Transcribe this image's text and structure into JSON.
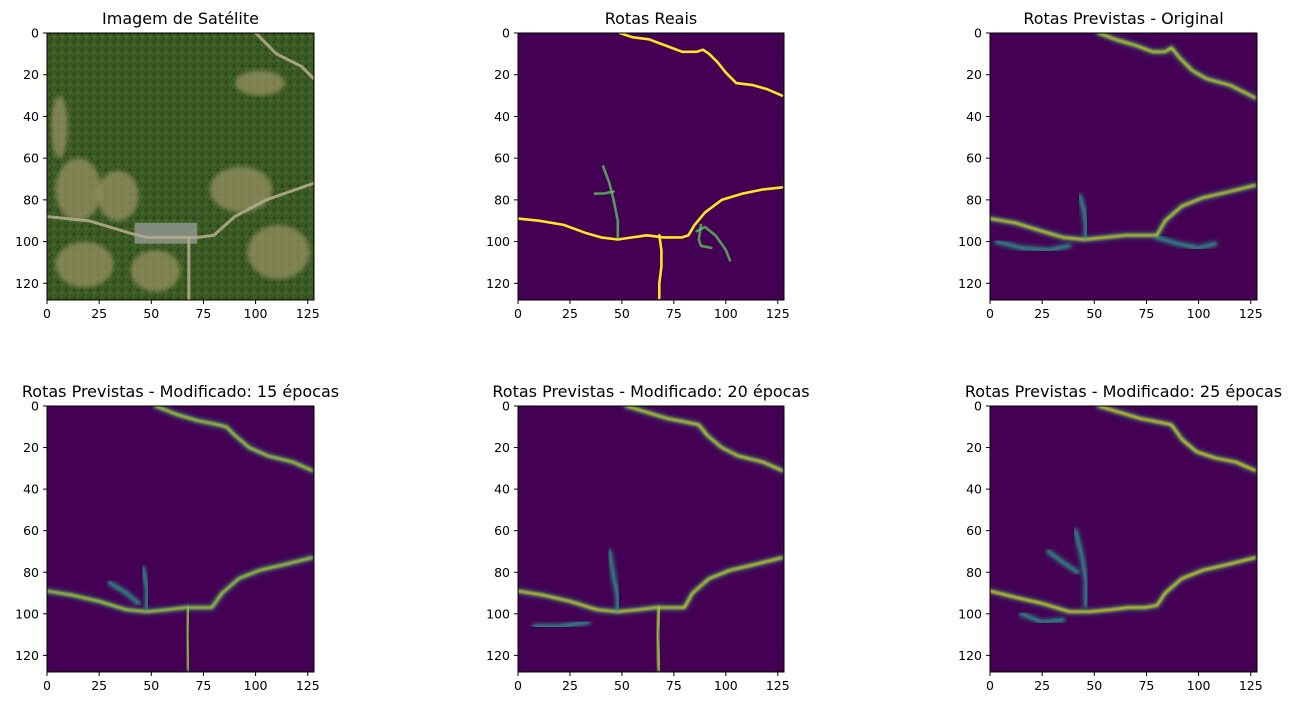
{
  "figure": {
    "description_hidden": false
  },
  "chart_data": [
    {
      "type": "image",
      "id": "satellite",
      "title": "Imagem de Satélite",
      "xlim": [
        0,
        128
      ],
      "ylim": [
        128,
        0
      ],
      "xticks": [
        0,
        25,
        50,
        75,
        100,
        125
      ],
      "yticks": [
        0,
        20,
        40,
        60,
        80,
        100,
        120
      ],
      "colors": {
        "forest": "#3b5a24",
        "forest_dark": "#2c4619",
        "soil": "#a59a6c",
        "road": "#b3aa8c",
        "urban": "#8f9690"
      },
      "roads": [
        [
          [
            0,
            88
          ],
          [
            20,
            90
          ],
          [
            40,
            96
          ],
          [
            48,
            98
          ],
          [
            60,
            98
          ],
          [
            72,
            98
          ],
          [
            80,
            97
          ],
          [
            90,
            88
          ],
          [
            105,
            80
          ],
          [
            128,
            72
          ]
        ],
        [
          [
            100,
            0
          ],
          [
            110,
            10
          ],
          [
            122,
            16
          ],
          [
            128,
            22
          ]
        ],
        [
          [
            68,
            98
          ],
          [
            68,
            128
          ]
        ]
      ]
    },
    {
      "type": "heatmap",
      "id": "real",
      "title": "Rotas Reais",
      "xlim": [
        0,
        128
      ],
      "ylim": [
        128,
        0
      ],
      "xticks": [
        0,
        25,
        50,
        75,
        100,
        125
      ],
      "yticks": [
        0,
        20,
        40,
        60,
        80,
        100,
        120
      ],
      "colormap": "viridis",
      "background": "#440154",
      "line_color": "#fde725",
      "secondary_color": "#5ec962",
      "lines": [
        [
          [
            49,
            0
          ],
          [
            55,
            2
          ],
          [
            63,
            3
          ],
          [
            71,
            6
          ],
          [
            79,
            9
          ],
          [
            86,
            9
          ],
          [
            89,
            8
          ],
          [
            92,
            10
          ],
          [
            96,
            14
          ],
          [
            100,
            19
          ],
          [
            105,
            24
          ],
          [
            113,
            25
          ],
          [
            120,
            27
          ],
          [
            127,
            30
          ]
        ],
        [
          [
            0,
            89
          ],
          [
            10,
            90
          ],
          [
            22,
            92
          ],
          [
            33,
            96
          ],
          [
            40,
            98
          ],
          [
            48,
            99
          ],
          [
            55,
            98
          ],
          [
            62,
            97
          ],
          [
            70,
            98
          ],
          [
            79,
            98
          ],
          [
            82,
            97
          ],
          [
            85,
            92
          ],
          [
            90,
            86
          ],
          [
            98,
            80
          ],
          [
            108,
            77
          ],
          [
            118,
            75
          ],
          [
            127,
            74
          ]
        ],
        [
          [
            68,
            97
          ],
          [
            69,
            104
          ],
          [
            69,
            112
          ],
          [
            68,
            120
          ],
          [
            68,
            127
          ]
        ],
        [
          [
            41,
            64
          ],
          [
            44,
            72
          ],
          [
            46,
            80
          ],
          [
            48,
            90
          ],
          [
            48,
            98
          ]
        ],
        [
          [
            37,
            77
          ],
          [
            41,
            77
          ],
          [
            46,
            76
          ]
        ],
        [
          [
            86,
            95
          ],
          [
            90,
            93
          ],
          [
            95,
            97
          ],
          [
            100,
            104
          ],
          [
            102,
            109
          ]
        ],
        [
          [
            88,
            92
          ],
          [
            87,
            99
          ],
          [
            88,
            102
          ],
          [
            93,
            103
          ]
        ]
      ]
    },
    {
      "type": "heatmap",
      "id": "pred-original",
      "title": "Rotas Previstas - Original",
      "xlim": [
        0,
        128
      ],
      "ylim": [
        128,
        0
      ],
      "xticks": [
        0,
        25,
        50,
        75,
        100,
        125
      ],
      "yticks": [
        0,
        20,
        40,
        60,
        80,
        100,
        120
      ],
      "colormap": "viridis",
      "background": "#440154",
      "line_color": "#d5e21a",
      "secondary_color": "#2a9d8c",
      "lines": [
        [
          [
            52,
            0
          ],
          [
            60,
            3
          ],
          [
            70,
            6
          ],
          [
            78,
            9
          ],
          [
            84,
            9
          ],
          [
            87,
            7
          ],
          [
            91,
            12
          ],
          [
            97,
            18
          ],
          [
            104,
            22
          ],
          [
            115,
            25
          ],
          [
            127,
            31
          ]
        ],
        [
          [
            0,
            89
          ],
          [
            12,
            91
          ],
          [
            25,
            95
          ],
          [
            35,
            98
          ],
          [
            45,
            99
          ],
          [
            55,
            98
          ],
          [
            65,
            97
          ],
          [
            75,
            97
          ],
          [
            80,
            97
          ],
          [
            84,
            90
          ],
          [
            92,
            83
          ],
          [
            102,
            79
          ],
          [
            115,
            76
          ],
          [
            127,
            73
          ]
        ],
        [
          [
            68,
            97
          ],
          [
            68,
            110
          ],
          [
            68,
            127
          ]
        ],
        [
          [
            43,
            78
          ],
          [
            45,
            85
          ],
          [
            46,
            92
          ],
          [
            46,
            98
          ]
        ],
        [
          [
            3,
            100
          ],
          [
            15,
            103
          ],
          [
            28,
            104
          ],
          [
            38,
            102
          ]
        ],
        [
          [
            80,
            98
          ],
          [
            90,
            101
          ],
          [
            100,
            103
          ],
          [
            108,
            101
          ]
        ]
      ]
    },
    {
      "type": "heatmap",
      "id": "pred-15",
      "title": "Rotas Previstas - Modificado: 15 épocas",
      "xlim": [
        0,
        128
      ],
      "ylim": [
        128,
        0
      ],
      "xticks": [
        0,
        25,
        50,
        75,
        100,
        125
      ],
      "yticks": [
        0,
        20,
        40,
        60,
        80,
        100,
        120
      ],
      "colormap": "viridis",
      "background": "#440154",
      "line_color": "#b8de29",
      "secondary_color": "#2a9d8c",
      "lines": [
        [
          [
            52,
            0
          ],
          [
            62,
            4
          ],
          [
            72,
            7
          ],
          [
            82,
            9
          ],
          [
            86,
            10
          ],
          [
            90,
            14
          ],
          [
            97,
            20
          ],
          [
            106,
            24
          ],
          [
            118,
            27
          ],
          [
            127,
            31
          ]
        ],
        [
          [
            0,
            89
          ],
          [
            12,
            91
          ],
          [
            25,
            94
          ],
          [
            38,
            98
          ],
          [
            48,
            99
          ],
          [
            58,
            98
          ],
          [
            66,
            97
          ],
          [
            74,
            97
          ],
          [
            79,
            97
          ],
          [
            84,
            90
          ],
          [
            92,
            83
          ],
          [
            102,
            79
          ],
          [
            115,
            76
          ],
          [
            127,
            73
          ]
        ],
        [
          [
            68,
            97
          ],
          [
            67,
            110
          ],
          [
            68,
            127
          ]
        ],
        [
          [
            46,
            78
          ],
          [
            48,
            88
          ],
          [
            48,
            97
          ]
        ],
        [
          [
            30,
            85
          ],
          [
            38,
            90
          ],
          [
            44,
            95
          ]
        ]
      ]
    },
    {
      "type": "heatmap",
      "id": "pred-20",
      "title": "Rotas Previstas - Modificado: 20 épocas",
      "xlim": [
        0,
        128
      ],
      "ylim": [
        128,
        0
      ],
      "xticks": [
        0,
        25,
        50,
        75,
        100,
        125
      ],
      "yticks": [
        0,
        20,
        40,
        60,
        80,
        100,
        120
      ],
      "colormap": "viridis",
      "background": "#440154",
      "line_color": "#d5e21a",
      "secondary_color": "#2a9d8c",
      "lines": [
        [
          [
            52,
            0
          ],
          [
            62,
            3
          ],
          [
            72,
            6
          ],
          [
            82,
            8
          ],
          [
            87,
            9
          ],
          [
            91,
            14
          ],
          [
            98,
            20
          ],
          [
            106,
            24
          ],
          [
            118,
            27
          ],
          [
            127,
            31
          ]
        ],
        [
          [
            0,
            89
          ],
          [
            12,
            91
          ],
          [
            25,
            94
          ],
          [
            38,
            98
          ],
          [
            48,
            99
          ],
          [
            58,
            98
          ],
          [
            66,
            97
          ],
          [
            74,
            97
          ],
          [
            80,
            97
          ],
          [
            84,
            90
          ],
          [
            92,
            83
          ],
          [
            102,
            79
          ],
          [
            115,
            76
          ],
          [
            127,
            73
          ]
        ],
        [
          [
            68,
            97
          ],
          [
            67,
            110
          ],
          [
            68,
            127
          ]
        ],
        [
          [
            44,
            70
          ],
          [
            46,
            82
          ],
          [
            48,
            92
          ],
          [
            48,
            98
          ]
        ],
        [
          [
            8,
            106
          ],
          [
            20,
            106
          ],
          [
            34,
            104
          ]
        ]
      ]
    },
    {
      "type": "heatmap",
      "id": "pred-25",
      "title": "Rotas Previstas - Modificado: 25 épocas",
      "xlim": [
        0,
        128
      ],
      "ylim": [
        128,
        0
      ],
      "xticks": [
        0,
        25,
        50,
        75,
        100,
        125
      ],
      "yticks": [
        0,
        20,
        40,
        60,
        80,
        100,
        120
      ],
      "colormap": "viridis",
      "background": "#440154",
      "line_color": "#e3e418",
      "secondary_color": "#2a9d8c",
      "lines": [
        [
          [
            52,
            0
          ],
          [
            62,
            3
          ],
          [
            72,
            6
          ],
          [
            82,
            8
          ],
          [
            87,
            9
          ],
          [
            92,
            16
          ],
          [
            99,
            22
          ],
          [
            108,
            25
          ],
          [
            118,
            27
          ],
          [
            127,
            31
          ]
        ],
        [
          [
            0,
            89
          ],
          [
            12,
            92
          ],
          [
            25,
            95
          ],
          [
            38,
            99
          ],
          [
            48,
            99
          ],
          [
            58,
            98
          ],
          [
            66,
            97
          ],
          [
            74,
            97
          ],
          [
            80,
            96
          ],
          [
            84,
            90
          ],
          [
            92,
            83
          ],
          [
            102,
            79
          ],
          [
            115,
            76
          ],
          [
            127,
            73
          ]
        ],
        [
          [
            67,
            97
          ],
          [
            67,
            110
          ],
          [
            67,
            127
          ]
        ],
        [
          [
            41,
            60
          ],
          [
            44,
            72
          ],
          [
            46,
            84
          ],
          [
            46,
            96
          ]
        ],
        [
          [
            28,
            70
          ],
          [
            36,
            76
          ],
          [
            42,
            80
          ]
        ],
        [
          [
            15,
            100
          ],
          [
            25,
            104
          ],
          [
            35,
            103
          ]
        ]
      ]
    }
  ]
}
